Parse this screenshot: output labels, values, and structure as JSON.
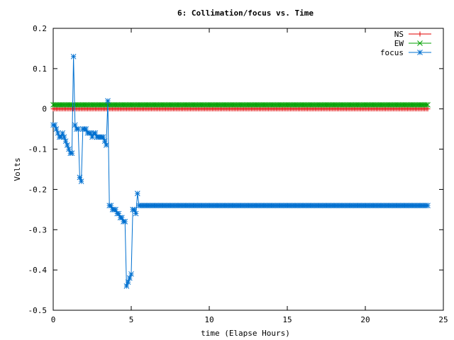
{
  "chart_data": {
    "type": "line",
    "title": "6: Collimation/focus vs. Time",
    "xlabel": "time (Elapse Hours)",
    "ylabel": "Volts",
    "xlim": [
      0,
      25
    ],
    "ylim": [
      -0.5,
      0.2
    ],
    "xticks": [
      0,
      5,
      10,
      15,
      20,
      25
    ],
    "yticks": [
      -0.5,
      -0.4,
      -0.3,
      -0.2,
      -0.1,
      0,
      0.1,
      0.2
    ],
    "xtick_labels": [
      "0",
      "5",
      "10",
      "15",
      "20",
      "25"
    ],
    "ytick_labels": [
      "-0.5",
      "-0.4",
      "-0.3",
      "-0.2",
      "-0.1",
      "0",
      "0.1",
      "0.2"
    ],
    "legend_position": "top-right",
    "grid": false,
    "series": [
      {
        "name": "NS",
        "color": "#e00000",
        "marker": "plus",
        "x_start": 0,
        "x_end": 24,
        "x_step": 0.1,
        "constant_value": 0.0
      },
      {
        "name": "EW",
        "color": "#00a000",
        "marker": "cross",
        "x_start": 0,
        "x_end": 24,
        "x_step": 0.1,
        "constant_value": 0.01
      },
      {
        "name": "focus",
        "color": "#0070d0",
        "marker": "star",
        "x": [
          0.0,
          0.1,
          0.2,
          0.3,
          0.4,
          0.5,
          0.6,
          0.7,
          0.8,
          0.9,
          1.0,
          1.1,
          1.2,
          1.3,
          1.4,
          1.5,
          1.6,
          1.7,
          1.8,
          1.9,
          2.0,
          2.1,
          2.2,
          2.3,
          2.4,
          2.5,
          2.6,
          2.7,
          2.8,
          2.9,
          3.0,
          3.1,
          3.2,
          3.3,
          3.4,
          3.5,
          3.6,
          3.7,
          3.8,
          3.9,
          4.0,
          4.1,
          4.2,
          4.3,
          4.4,
          4.5,
          4.6,
          4.7,
          4.8,
          4.9,
          5.0,
          5.1,
          5.2,
          5.3,
          5.4,
          5.5,
          5.6,
          5.7,
          5.8,
          5.9,
          6.0,
          6.1,
          6.2,
          6.3
        ],
        "y": [
          -0.04,
          -0.04,
          -0.05,
          -0.06,
          -0.07,
          -0.07,
          -0.06,
          -0.07,
          -0.08,
          -0.09,
          -0.1,
          -0.11,
          -0.11,
          0.13,
          -0.04,
          -0.05,
          -0.05,
          -0.17,
          -0.18,
          -0.05,
          -0.05,
          -0.05,
          -0.06,
          -0.06,
          -0.06,
          -0.07,
          -0.06,
          -0.06,
          -0.07,
          -0.07,
          -0.07,
          -0.07,
          -0.07,
          -0.08,
          -0.09,
          0.02,
          -0.24,
          -0.24,
          -0.25,
          -0.25,
          -0.25,
          -0.26,
          -0.26,
          -0.27,
          -0.27,
          -0.28,
          -0.28,
          -0.44,
          -0.43,
          -0.42,
          -0.41,
          -0.25,
          -0.25,
          -0.26,
          -0.21,
          -0.24,
          -0.24,
          -0.24,
          -0.24,
          -0.24,
          -0.24,
          -0.24,
          -0.24,
          -0.24
        ],
        "tail_x_end": 24,
        "tail_value": -0.24
      }
    ]
  }
}
